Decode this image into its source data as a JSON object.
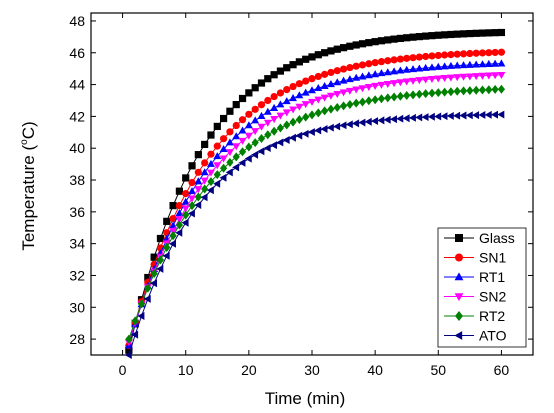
{
  "chart_data": {
    "type": "scatter",
    "xlabel": "Time (min)",
    "ylabel_main": "Temperature (",
    "ylabel_deg": "o",
    "ylabel_unit": "C)",
    "xlim": [
      -5,
      65
    ],
    "ylim": [
      27,
      48.5
    ],
    "xticks": [
      0,
      10,
      20,
      30,
      40,
      50,
      60
    ],
    "yticks": [
      28,
      30,
      32,
      34,
      36,
      38,
      40,
      42,
      44,
      46,
      48
    ],
    "grid": false,
    "legend_position": "bottom-right",
    "series": [
      {
        "name": "Glass",
        "color": "#000000",
        "marker": "square",
        "T0": 27.3,
        "Tmax": 47.4,
        "k": 0.086
      },
      {
        "name": "SN1",
        "color": "#ff0000",
        "marker": "circle",
        "T0": 27.6,
        "Tmax": 46.2,
        "k": 0.08
      },
      {
        "name": "RT1",
        "color": "#0000ff",
        "marker": "triangle-up",
        "T0": 27.6,
        "Tmax": 45.5,
        "k": 0.078
      },
      {
        "name": "SN2",
        "color": "#ff00ff",
        "marker": "triangle-down",
        "T0": 27.8,
        "Tmax": 44.8,
        "k": 0.076
      },
      {
        "name": "RT2",
        "color": "#008000",
        "marker": "diamond",
        "T0": 28.0,
        "Tmax": 43.9,
        "k": 0.075
      },
      {
        "name": "ATO",
        "color": "#000080",
        "marker": "triangle-left",
        "T0": 27.0,
        "Tmax": 42.2,
        "k": 0.088
      }
    ],
    "x_points": [
      1,
      2,
      3,
      4,
      5,
      6,
      7,
      8,
      9,
      10,
      11,
      12,
      13,
      14,
      15,
      16,
      17,
      18,
      19,
      20,
      21,
      22,
      23,
      24,
      25,
      26,
      27,
      28,
      29,
      30,
      31,
      32,
      33,
      34,
      35,
      36,
      37,
      38,
      39,
      40,
      41,
      42,
      43,
      44,
      45,
      46,
      47,
      48,
      49,
      50,
      51,
      52,
      53,
      54,
      55,
      56,
      57,
      58,
      59,
      60
    ]
  }
}
